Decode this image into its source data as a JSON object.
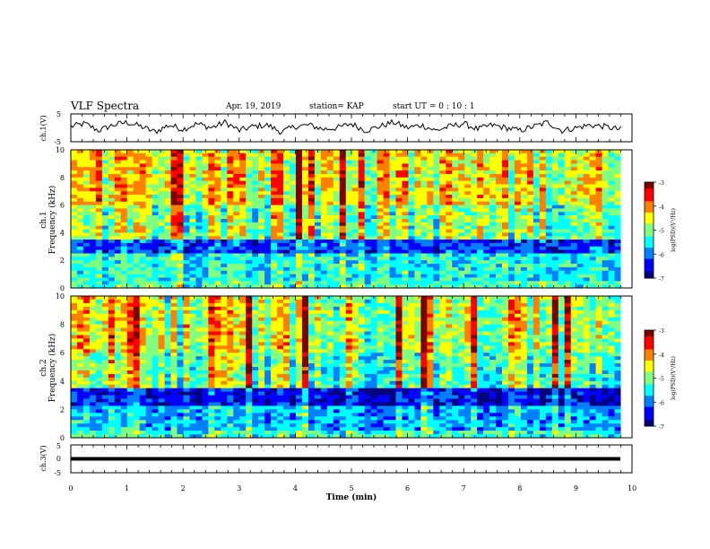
{
  "header": {
    "title": "VLF Spectra",
    "date": "Apr. 19, 2019",
    "station": "station= KAP",
    "start": "start  UT =   0 : 10 : 1"
  },
  "chart_data": [
    {
      "type": "line",
      "panel": "ch1-waveform",
      "ylabel": "ch.1(V)",
      "ylim": [
        -5,
        5
      ],
      "yticks": [
        "5",
        "-5"
      ],
      "xlim": [
        0,
        10
      ],
      "x": [
        0,
        0.25,
        0.5,
        0.75,
        1,
        1.25,
        1.5,
        1.75,
        2,
        2.25,
        2.5,
        2.75,
        3,
        3.25,
        3.5,
        3.75,
        4,
        4.25,
        4.5,
        4.75,
        5,
        5.25,
        5.5,
        5.75,
        6,
        6.25,
        6.5,
        6.75,
        7,
        7.25,
        7.5,
        7.75,
        8,
        8.25,
        8.5,
        8.75,
        9,
        9.25,
        9.5,
        9.75
      ],
      "y": [
        0.5,
        1.5,
        -1,
        1,
        2,
        0.5,
        -1.5,
        1,
        -0.5,
        1.5,
        0,
        2,
        -1,
        0.5,
        1,
        -1.5,
        0.5,
        1,
        -0.5,
        0,
        1.5,
        -1,
        0.5,
        2,
        0,
        1,
        -1,
        0.5,
        1.5,
        -0.5,
        1,
        0,
        -1,
        0.5,
        2,
        -1,
        0,
        1,
        0.5,
        -0.5
      ]
    },
    {
      "type": "heatmap",
      "panel": "ch1-spectrogram",
      "ylabel": "ch.1\nFrequency  (kHz)",
      "ylim": [
        0,
        10
      ],
      "yticks": [
        "0",
        "2",
        "4",
        "6",
        "8",
        "10"
      ],
      "xlim": [
        0,
        10
      ],
      "colorbar": {
        "label": "log(PSD)(V²/Hz)",
        "range": [
          -7,
          -3
        ],
        "ticks": [
          "-3",
          "-4",
          "-5",
          "-6",
          "-7"
        ]
      }
    },
    {
      "type": "heatmap",
      "panel": "ch2-spectrogram",
      "ylabel": "ch.2\nFrequency  (kHz)",
      "ylim": [
        0,
        10
      ],
      "yticks": [
        "0",
        "2",
        "4",
        "6",
        "8",
        "10"
      ],
      "xlim": [
        0,
        10
      ],
      "colorbar": {
        "label": "log(PSD)(V²/Hz)",
        "range": [
          -7,
          -3
        ],
        "ticks": [
          "-3",
          "-4",
          "-5",
          "-6",
          "-7"
        ]
      }
    },
    {
      "type": "line",
      "panel": "ch3-waveform",
      "ylabel": "ch.3(V)",
      "ylim": [
        -5,
        5
      ],
      "yticks": [
        "5",
        "0",
        "-5"
      ],
      "xlim": [
        0,
        10
      ],
      "xticks": [
        "0",
        "1",
        "2",
        "3",
        "4",
        "5",
        "6",
        "7",
        "8",
        "9",
        "10"
      ],
      "xlabel": "Time  (min)",
      "x": [
        0,
        9.8
      ],
      "y": [
        0,
        0
      ]
    }
  ],
  "colors": {
    "colormap": [
      "#00007f",
      "#0000ff",
      "#0080ff",
      "#00ffff",
      "#80ff80",
      "#ffff00",
      "#ff8000",
      "#ff0000",
      "#7f0000"
    ]
  }
}
